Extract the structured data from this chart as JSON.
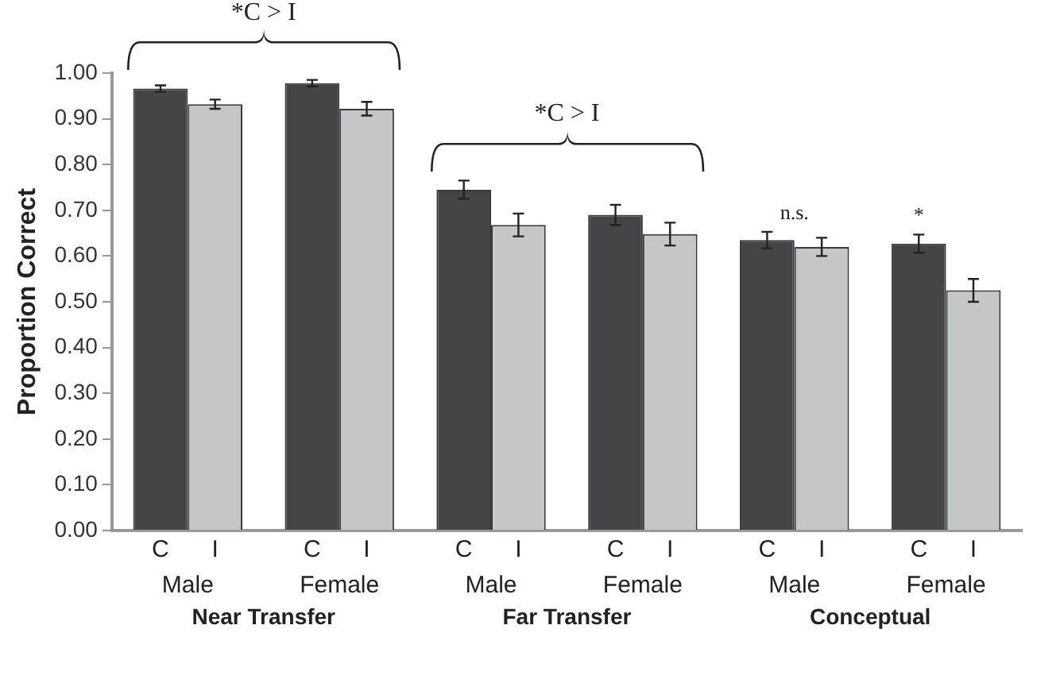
{
  "chart_data": {
    "type": "bar",
    "ylabel": "Proportion Correct",
    "categories": [
      "Male",
      "Female",
      "Male",
      "Female",
      "Male",
      "Female"
    ],
    "series": [
      {
        "name": "C",
        "color": "#454547",
        "values": [
          0.966,
          0.978,
          0.745,
          0.69,
          0.635,
          0.627
        ],
        "errors": [
          0.007,
          0.007,
          0.02,
          0.022,
          0.018,
          0.02
        ]
      },
      {
        "name": "I",
        "color": "#c5c6c8",
        "values": [
          0.932,
          0.922,
          0.668,
          0.648,
          0.62,
          0.525
        ],
        "errors": [
          0.01,
          0.015,
          0.025,
          0.025,
          0.02,
          0.025
        ]
      }
    ],
    "ylim": [
      0,
      1
    ],
    "yticks": [
      {
        "value": 0,
        "label": "0.00"
      },
      {
        "value": 0.1,
        "label": "0.10"
      },
      {
        "value": 0.2,
        "label": "0.20"
      },
      {
        "value": 0.3,
        "label": "0.30"
      },
      {
        "value": 0.4,
        "label": "0.40"
      },
      {
        "value": 0.5,
        "label": "0.50"
      },
      {
        "value": 0.6,
        "label": "0.60"
      },
      {
        "value": 0.7,
        "label": "0.70"
      },
      {
        "value": 0.8,
        "label": "0.80"
      },
      {
        "value": 0.9,
        "label": "0.90"
      },
      {
        "value": 1,
        "label": "1.00"
      }
    ],
    "annotations": [
      "*C > I",
      "*C > I",
      "n.s.",
      "*",
      "Near Transfer",
      "Far Transfer",
      "Conceptual"
    ],
    "grid": false,
    "legend": false
  }
}
